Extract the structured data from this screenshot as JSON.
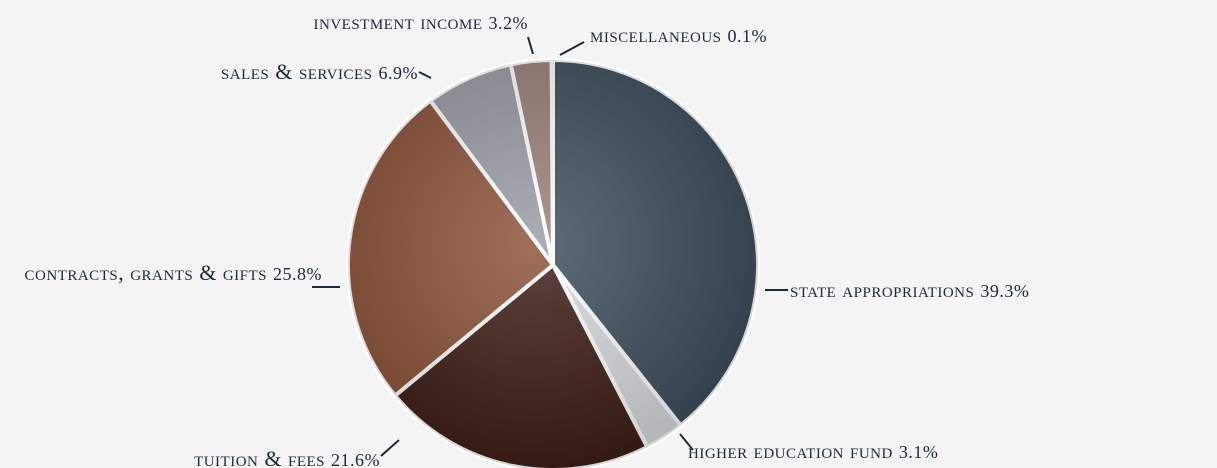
{
  "chart_data": {
    "type": "pie",
    "categories": [
      "state appropriations",
      "higher education fund",
      "tuition & fees",
      "contracts, grants & gifts",
      "sales & services",
      "investment income",
      "miscellaneous"
    ],
    "values": [
      39.3,
      3.1,
      21.6,
      25.8,
      6.9,
      3.2,
      0.1
    ],
    "value_labels": [
      "39.3%",
      "3.1%",
      "21.6%",
      "25.8%",
      "6.9%",
      "3.2%",
      "0.1%"
    ],
    "colors": [
      "#3c4d5c",
      "#d6dbde",
      "#3b1b13",
      "#8a5135",
      "#999ba5",
      "#9b7f78",
      "#c8c8c8"
    ]
  }
}
